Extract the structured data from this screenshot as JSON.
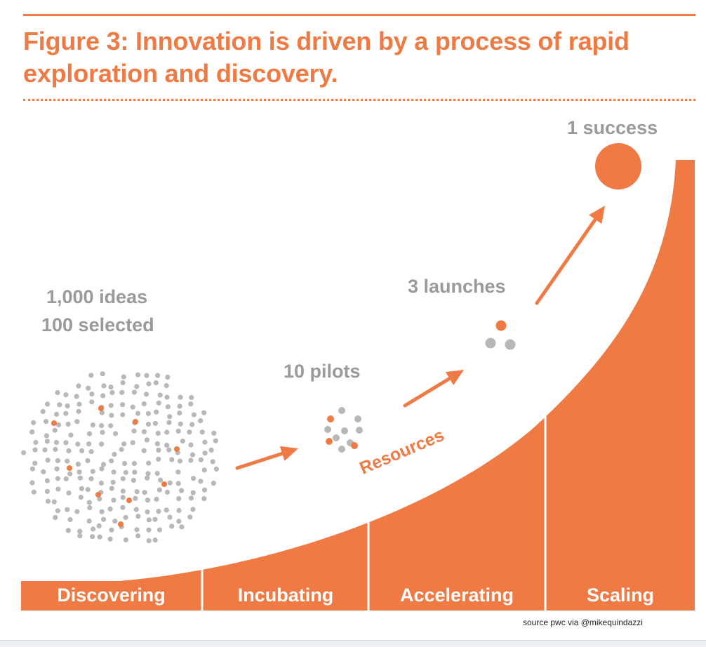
{
  "title": "Figure 3: Innovation is driven by a process of rapid exploration and discovery.",
  "labels": {
    "ideas_line1": "1,000 ideas",
    "ideas_line2": "100 selected",
    "pilots": "10 pilots",
    "launches": "3 launches",
    "success": "1 success",
    "resources": "Resources"
  },
  "stages": [
    "Discovering",
    "Incubating",
    "Accelerating",
    "Scaling"
  ],
  "source": "source pwc via @mikequindazzi",
  "colors": {
    "accent": "#ef7a44",
    "gray_dot": "#b8b8b8",
    "gray_text": "#9a9a9a",
    "background": "#ffffff"
  }
}
